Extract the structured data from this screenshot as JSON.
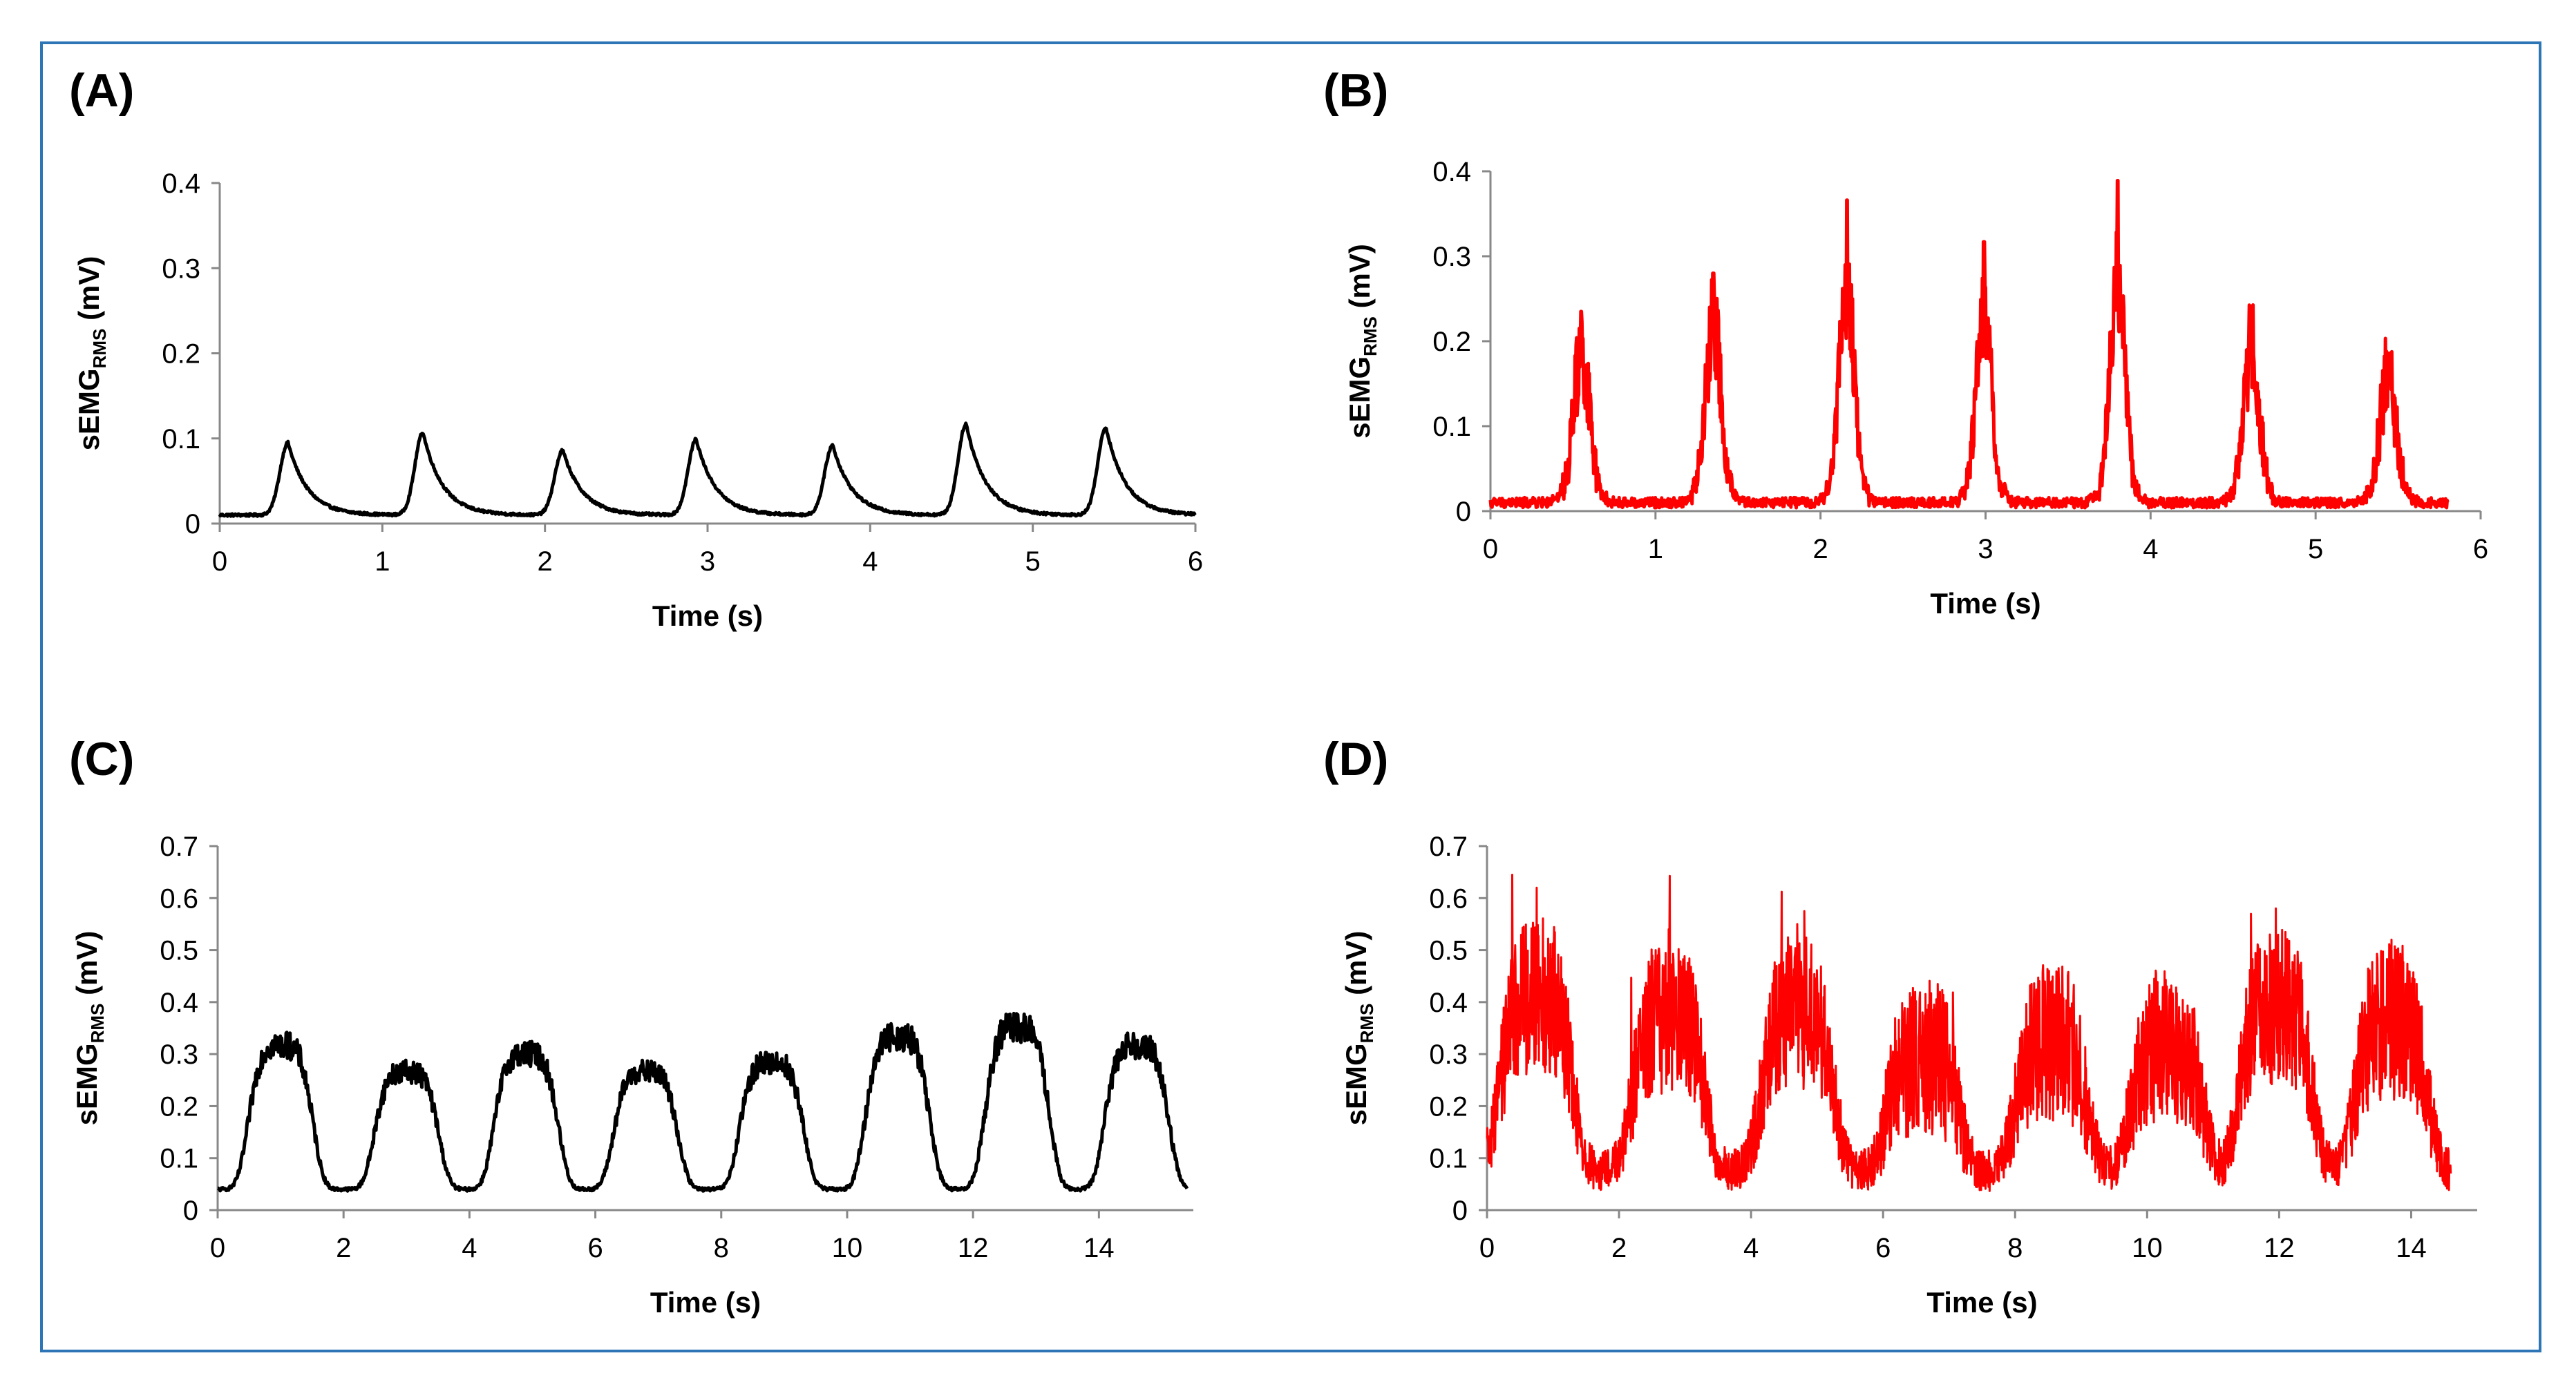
{
  "figure": {
    "border_color": "#2e75b6",
    "panels": [
      "(A)",
      "(B)",
      "(C)",
      "(D)"
    ]
  },
  "chart_data": [
    {
      "id": "A",
      "panel_label": "(A)",
      "type": "line",
      "color": "#000000",
      "xlabel": "Time (s)",
      "ylabel_main": "sEMG",
      "ylabel_sub": "RMS",
      "ylabel_unit": " (mV)",
      "xlim": [
        0,
        6
      ],
      "ylim": [
        0,
        0.4
      ],
      "xticks": [
        0,
        1,
        2,
        3,
        4,
        5,
        6
      ],
      "yticks": [
        0,
        0.1,
        0.2,
        0.3,
        0.4
      ],
      "ytick_labels": [
        "0",
        "0.1",
        "0.2",
        "0.3",
        "0.4"
      ],
      "xtick_labels": [
        "0",
        "1",
        "2",
        "3",
        "4",
        "5",
        "6"
      ],
      "series": [
        {
          "name": "sEMG RMS",
          "baseline": 0.01,
          "peaks": [
            {
              "t": 0.42,
              "v": 0.095
            },
            {
              "t": 1.25,
              "v": 0.107
            },
            {
              "t": 2.11,
              "v": 0.086
            },
            {
              "t": 2.93,
              "v": 0.099
            },
            {
              "t": 3.77,
              "v": 0.092
            },
            {
              "t": 4.59,
              "v": 0.117
            },
            {
              "t": 5.45,
              "v": 0.113
            }
          ],
          "t_end": 6.0
        }
      ]
    },
    {
      "id": "B",
      "panel_label": "(B)",
      "type": "line",
      "color": "#ff0000",
      "xlabel": "Time (s)",
      "ylabel_main": "sEMG",
      "ylabel_sub": "RMS",
      "ylabel_unit": " (mV)",
      "xlim": [
        0,
        6
      ],
      "ylim": [
        0,
        0.4
      ],
      "xticks": [
        0,
        1,
        2,
        3,
        4,
        5,
        6
      ],
      "yticks": [
        0,
        0.1,
        0.2,
        0.3,
        0.4
      ],
      "ytick_labels": [
        "0",
        "0.1",
        "0.2",
        "0.3",
        "0.4"
      ],
      "xtick_labels": [
        "0",
        "1",
        "2",
        "3",
        "4",
        "5",
        "6"
      ],
      "series": [
        {
          "name": "sEMG RMS",
          "baseline": 0.01,
          "peaks": [
            {
              "t": 0.55,
              "v": 0.235
            },
            {
              "t": 1.35,
              "v": 0.28
            },
            {
              "t": 2.16,
              "v": 0.366
            },
            {
              "t": 2.99,
              "v": 0.317
            },
            {
              "t": 3.8,
              "v": 0.389
            },
            {
              "t": 4.61,
              "v": 0.236
            },
            {
              "t": 5.44,
              "v": 0.181
            }
          ],
          "t_end": 5.8
        }
      ]
    },
    {
      "id": "C",
      "panel_label": "(C)",
      "type": "line",
      "color": "#000000",
      "xlabel": "Time (s)",
      "ylabel_main": "sEMG",
      "ylabel_sub": "RMS",
      "ylabel_unit": " (mV)",
      "xlim": [
        0,
        15.5
      ],
      "ylim": [
        0,
        0.7
      ],
      "xticks": [
        0,
        2,
        4,
        6,
        8,
        10,
        12,
        14
      ],
      "yticks": [
        0,
        0.1,
        0.2,
        0.3,
        0.4,
        0.5,
        0.6,
        0.7
      ],
      "ytick_labels": [
        "0",
        "0.1",
        "0.2",
        "0.3",
        "0.4",
        "0.5",
        "0.6",
        "0.7"
      ],
      "xtick_labels": [
        "0",
        "2",
        "4",
        "6",
        "8",
        "10",
        "12",
        "14"
      ],
      "series": [
        {
          "name": "sEMG RMS",
          "baseline": 0.04,
          "peaks": [
            {
              "t": 1.0,
              "v": 0.34
            },
            {
              "t": 3.0,
              "v": 0.28
            },
            {
              "t": 4.9,
              "v": 0.32
            },
            {
              "t": 6.8,
              "v": 0.28
            },
            {
              "t": 8.8,
              "v": 0.3
            },
            {
              "t": 10.8,
              "v": 0.36
            },
            {
              "t": 12.7,
              "v": 0.38
            },
            {
              "t": 14.6,
              "v": 0.34
            }
          ],
          "t_end": 15.4
        }
      ]
    },
    {
      "id": "D",
      "panel_label": "(D)",
      "type": "line",
      "color": "#ff0000",
      "xlabel": "Time (s)",
      "ylabel_main": "sEMG",
      "ylabel_sub": "RMS",
      "ylabel_unit": " (mV)",
      "xlim": [
        0,
        15
      ],
      "ylim": [
        0,
        0.7
      ],
      "xticks": [
        0,
        2,
        4,
        6,
        8,
        10,
        12,
        14
      ],
      "yticks": [
        0,
        0.1,
        0.2,
        0.3,
        0.4,
        0.5,
        0.6,
        0.7
      ],
      "ytick_labels": [
        "0",
        "0.1",
        "0.2",
        "0.3",
        "0.4",
        "0.5",
        "0.6",
        "0.7"
      ],
      "xtick_labels": [
        "0",
        "2",
        "4",
        "6",
        "8",
        "10",
        "12",
        "14"
      ],
      "series": [
        {
          "name": "sEMG RMS",
          "baseline": 0.06,
          "peaks": [
            {
              "t": 0.75,
              "v": 0.62
            },
            {
              "t": 2.75,
              "v": 0.54
            },
            {
              "t": 4.7,
              "v": 0.55
            },
            {
              "t": 6.6,
              "v": 0.38
            },
            {
              "t": 8.55,
              "v": 0.44
            },
            {
              "t": 10.3,
              "v": 0.43
            },
            {
              "t": 11.95,
              "v": 0.58
            },
            {
              "t": 13.7,
              "v": 0.52
            }
          ],
          "t_end": 14.6
        }
      ]
    }
  ]
}
